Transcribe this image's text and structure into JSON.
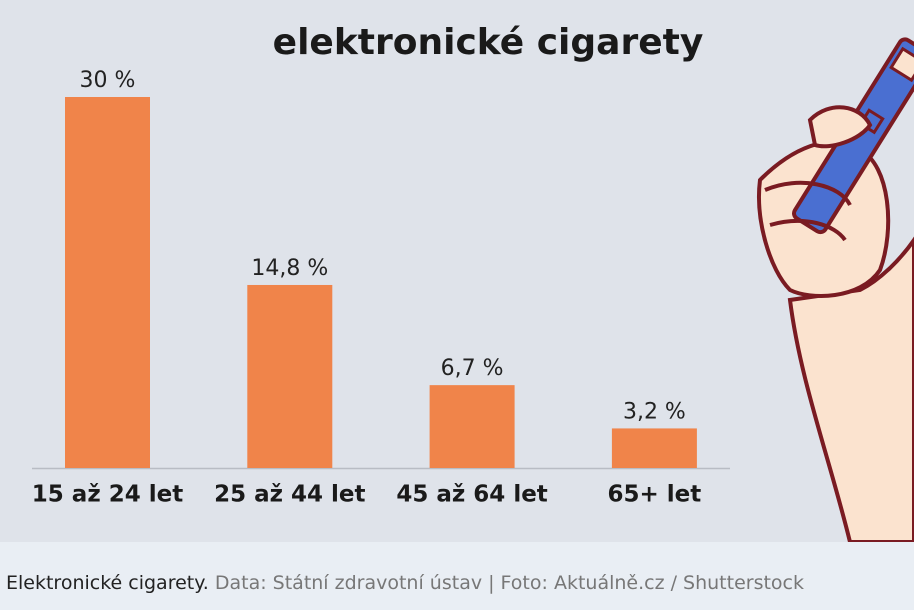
{
  "chart_data": {
    "type": "bar",
    "title": "elektronické cigarety",
    "categories": [
      "15 až 24 let",
      "25 až 44 let",
      "45 až 64 let",
      "65+ let"
    ],
    "values": [
      30,
      14.8,
      6.7,
      3.2
    ],
    "value_labels": [
      "30 %",
      "14,8 %",
      "6,7 %",
      "3,2 %"
    ],
    "color": "#f0844a"
  },
  "caption": {
    "title": "Elektronické cigarety.",
    "source": "Data: Státní zdravotní ústav | Foto: Aktuálně.cz / Shutterstock"
  }
}
